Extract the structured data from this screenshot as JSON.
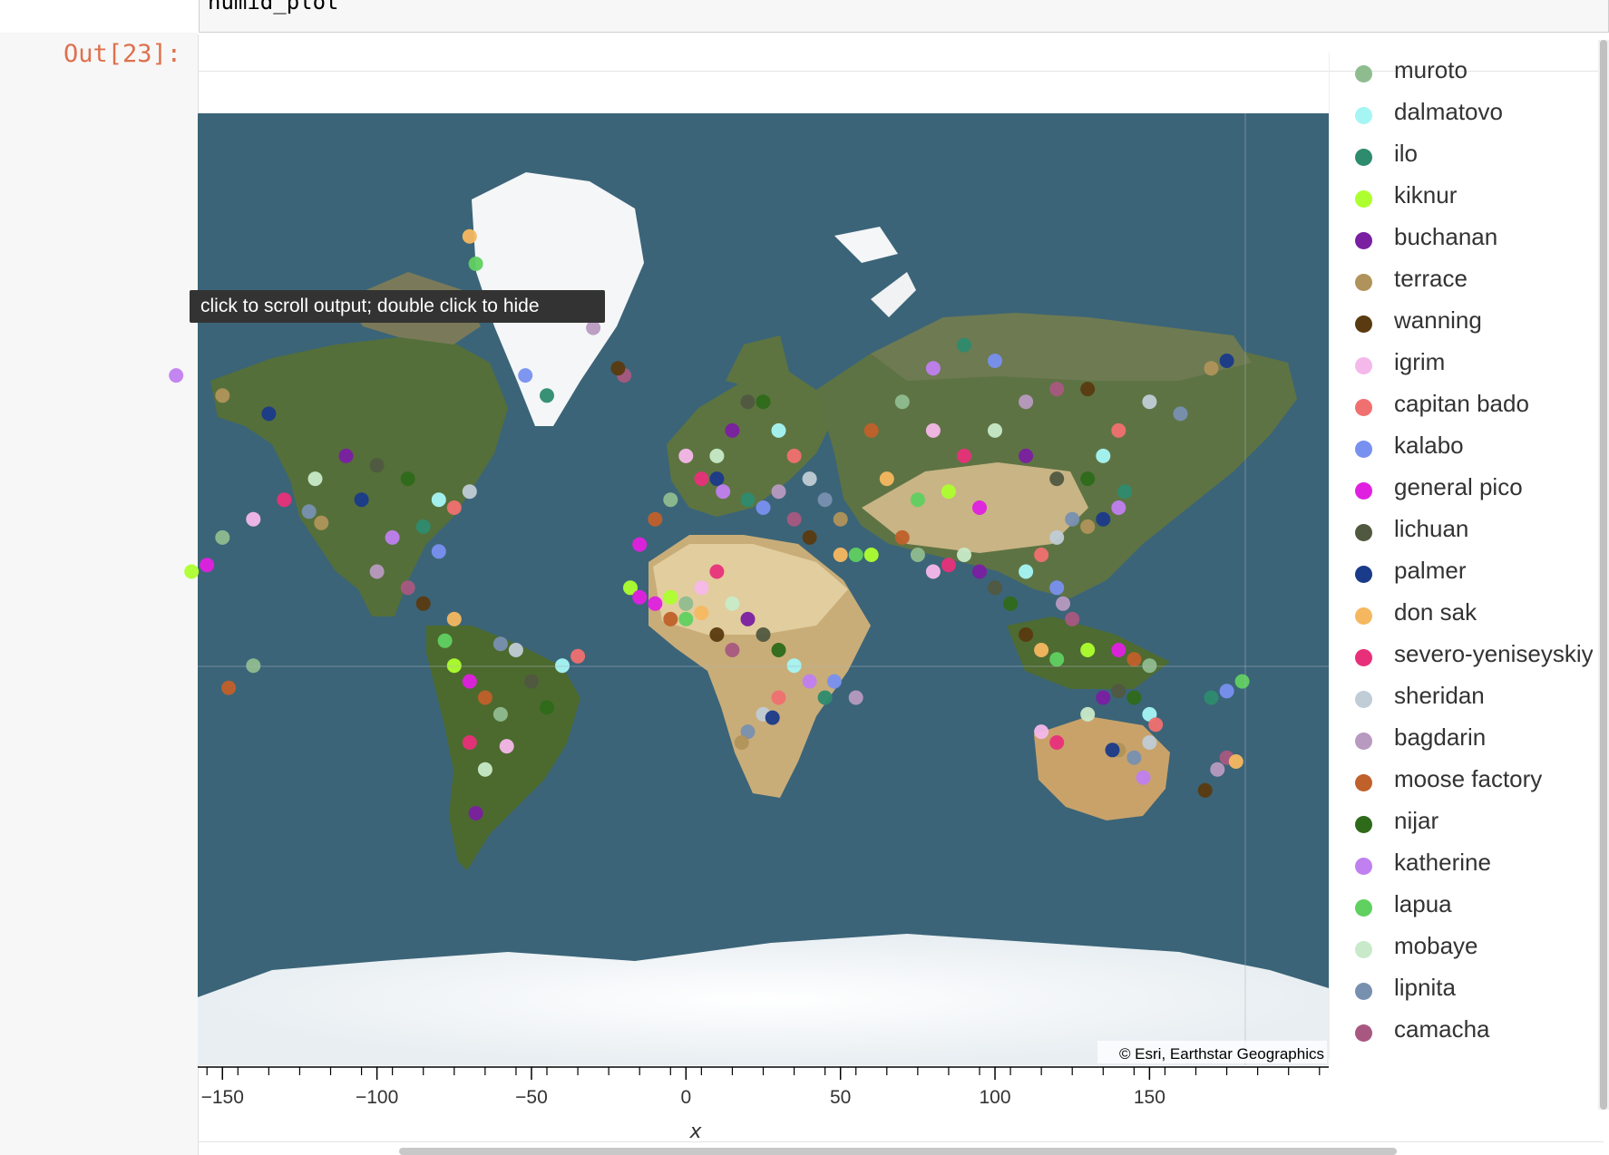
{
  "cell": {
    "code": "humid_plot",
    "prompt": "Out[23]:"
  },
  "tooltip": "click to scroll output; double click to hide",
  "attribution": "© Esri, Earthstar Geographics",
  "colors": {
    "ocean": "#3b6478",
    "prompt": "#d84315"
  },
  "chart_data": {
    "type": "scatter",
    "basemap": "satellite world map",
    "xlabel": "x",
    "xlim": [
      -158,
      208
    ],
    "x_ticks": [
      -150,
      -100,
      -50,
      0,
      50,
      100,
      150
    ],
    "legend_placement": "right",
    "legend": [
      {
        "name": "muroto",
        "color": "#8fbc8f"
      },
      {
        "name": "dalmatovo",
        "color": "#a6f5f5"
      },
      {
        "name": "ilo",
        "color": "#2e8b6e"
      },
      {
        "name": "kiknur",
        "color": "#adff2f"
      },
      {
        "name": "buchanan",
        "color": "#7a1fa2"
      },
      {
        "name": "terrace",
        "color": "#b0935a"
      },
      {
        "name": "wanning",
        "color": "#5a3a10"
      },
      {
        "name": "igrim",
        "color": "#f5b8ea"
      },
      {
        "name": "capitan bado",
        "color": "#f07070"
      },
      {
        "name": "kalabo",
        "color": "#7890f0"
      },
      {
        "name": "general pico",
        "color": "#e020e0"
      },
      {
        "name": "lichuan",
        "color": "#505840"
      },
      {
        "name": "palmer",
        "color": "#1a3a8a"
      },
      {
        "name": "don sak",
        "color": "#f5b860"
      },
      {
        "name": "severo-yeniseyskiy",
        "color": "#e8307a"
      },
      {
        "name": "sheridan",
        "color": "#c0ccd6"
      },
      {
        "name": "bagdarin",
        "color": "#b89ac0"
      },
      {
        "name": "moose factory",
        "color": "#c0602a"
      },
      {
        "name": "nijar",
        "color": "#2e6a1a"
      },
      {
        "name": "katherine",
        "color": "#c080f0"
      },
      {
        "name": "lapua",
        "color": "#60d060"
      },
      {
        "name": "mobaye",
        "color": "#c8eac8"
      },
      {
        "name": "lipnita",
        "color": "#7890b0"
      },
      {
        "name": "camacha",
        "color": "#a85880"
      }
    ],
    "points": [
      [
        -150,
        30
      ],
      [
        -140,
        35
      ],
      [
        -130,
        40
      ],
      [
        -120,
        45
      ],
      [
        -110,
        50
      ],
      [
        -100,
        48
      ],
      [
        -90,
        45
      ],
      [
        -80,
        40
      ],
      [
        -75,
        38
      ],
      [
        -70,
        42
      ],
      [
        -122,
        37
      ],
      [
        -118,
        34
      ],
      [
        -105,
        40
      ],
      [
        -95,
        30
      ],
      [
        -85,
        33
      ],
      [
        -80,
        26
      ],
      [
        -100,
        20
      ],
      [
        -90,
        15
      ],
      [
        -85,
        10
      ],
      [
        -75,
        5
      ],
      [
        -78,
        -2
      ],
      [
        -75,
        -10
      ],
      [
        -70,
        -15
      ],
      [
        -65,
        -20
      ],
      [
        -60,
        -25
      ],
      [
        -58,
        -34
      ],
      [
        -70,
        -33
      ],
      [
        -65,
        -40
      ],
      [
        -68,
        -50
      ],
      [
        -50,
        -15
      ],
      [
        -45,
        -23
      ],
      [
        -40,
        -10
      ],
      [
        -35,
        -7
      ],
      [
        -55,
        -5
      ],
      [
        -60,
        -3
      ],
      [
        -150,
        61
      ],
      [
        -135,
        58
      ],
      [
        -165,
        64
      ],
      [
        -45,
        61
      ],
      [
        -52,
        64
      ],
      [
        -30,
        70
      ],
      [
        -20,
        64
      ],
      [
        -22,
        65
      ],
      [
        -70,
        78
      ],
      [
        -68,
        76
      ],
      [
        -18,
        15
      ],
      [
        -15,
        28
      ],
      [
        -10,
        35
      ],
      [
        -5,
        40
      ],
      [
        0,
        50
      ],
      [
        5,
        45
      ],
      [
        10,
        50
      ],
      [
        15,
        55
      ],
      [
        20,
        60
      ],
      [
        25,
        60
      ],
      [
        30,
        55
      ],
      [
        35,
        50
      ],
      [
        40,
        45
      ],
      [
        45,
        40
      ],
      [
        50,
        35
      ],
      [
        10,
        45
      ],
      [
        12,
        42
      ],
      [
        20,
        40
      ],
      [
        25,
        38
      ],
      [
        30,
        42
      ],
      [
        35,
        35
      ],
      [
        40,
        30
      ],
      [
        50,
        25
      ],
      [
        55,
        25
      ],
      [
        60,
        25
      ],
      [
        -10,
        10
      ],
      [
        -5,
        5
      ],
      [
        0,
        10
      ],
      [
        5,
        15
      ],
      [
        10,
        20
      ],
      [
        15,
        10
      ],
      [
        20,
        5
      ],
      [
        25,
        0
      ],
      [
        30,
        -5
      ],
      [
        35,
        -10
      ],
      [
        30,
        -20
      ],
      [
        25,
        -25
      ],
      [
        20,
        -30
      ],
      [
        18,
        -33
      ],
      [
        28,
        -26
      ],
      [
        40,
        -15
      ],
      [
        45,
        -20
      ],
      [
        48,
        -15
      ],
      [
        55,
        -20
      ],
      [
        15,
        -5
      ],
      [
        10,
        0
      ],
      [
        5,
        7
      ],
      [
        0,
        5
      ],
      [
        -5,
        12
      ],
      [
        -15,
        12
      ],
      [
        60,
        55
      ],
      [
        70,
        60
      ],
      [
        80,
        55
      ],
      [
        90,
        50
      ],
      [
        100,
        55
      ],
      [
        110,
        50
      ],
      [
        120,
        45
      ],
      [
        130,
        45
      ],
      [
        135,
        50
      ],
      [
        140,
        55
      ],
      [
        150,
        60
      ],
      [
        160,
        58
      ],
      [
        170,
        65
      ],
      [
        175,
        66
      ],
      [
        80,
        65
      ],
      [
        90,
        68
      ],
      [
        100,
        66
      ],
      [
        110,
        60
      ],
      [
        120,
        62
      ],
      [
        130,
        62
      ],
      [
        65,
        45
      ],
      [
        75,
        40
      ],
      [
        85,
        42
      ],
      [
        95,
        38
      ],
      [
        70,
        30
      ],
      [
        75,
        25
      ],
      [
        80,
        20
      ],
      [
        85,
        22
      ],
      [
        90,
        25
      ],
      [
        95,
        20
      ],
      [
        100,
        15
      ],
      [
        105,
        10
      ],
      [
        110,
        20
      ],
      [
        115,
        25
      ],
      [
        120,
        30
      ],
      [
        125,
        35
      ],
      [
        130,
        33
      ],
      [
        135,
        35
      ],
      [
        140,
        38
      ],
      [
        142,
        42
      ],
      [
        120,
        15
      ],
      [
        122,
        10
      ],
      [
        125,
        5
      ],
      [
        110,
        0
      ],
      [
        115,
        -5
      ],
      [
        120,
        -8
      ],
      [
        130,
        -5
      ],
      [
        140,
        -5
      ],
      [
        145,
        -8
      ],
      [
        150,
        -10
      ],
      [
        115,
        -30
      ],
      [
        120,
        -33
      ],
      [
        130,
        -25
      ],
      [
        135,
        -20
      ],
      [
        140,
        -18
      ],
      [
        145,
        -20
      ],
      [
        150,
        -25
      ],
      [
        152,
        -28
      ],
      [
        150,
        -33
      ],
      [
        145,
        -37
      ],
      [
        140,
        -35
      ],
      [
        138,
        -35
      ],
      [
        148,
        -42
      ],
      [
        170,
        -20
      ],
      [
        175,
        -18
      ],
      [
        172,
        -40
      ],
      [
        175,
        -37
      ],
      [
        168,
        -45
      ],
      [
        178,
        -38
      ],
      [
        180,
        -15
      ],
      [
        -160,
        20
      ],
      [
        -155,
        22
      ],
      [
        -148,
        -17
      ],
      [
        -140,
        -10
      ]
    ]
  }
}
